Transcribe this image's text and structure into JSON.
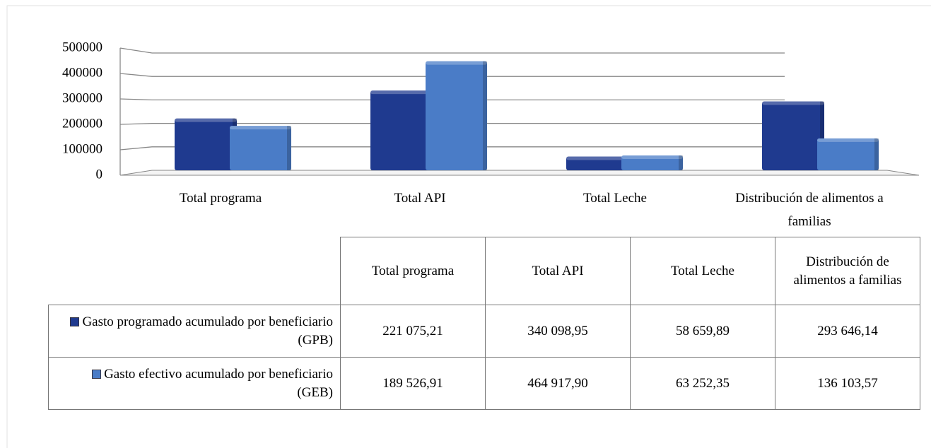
{
  "chart_data": {
    "type": "bar",
    "categories": [
      "Total programa",
      "Total API",
      "Total Leche",
      "Distribución de alimentos a familias"
    ],
    "series": [
      {
        "name": "Gasto programado acumulado por beneficiario (GPB)",
        "color": "#1f3a8f",
        "values": [
          221075.21,
          340098.95,
          58659.89,
          293646.14
        ],
        "value_labels": [
          "221 075,21",
          "340 098,95",
          "58 659,89",
          "293 646,14"
        ]
      },
      {
        "name": "Gasto efectivo acumulado por beneficiario (GEB)",
        "color": "#4a7cc7",
        "values": [
          189526.91,
          464917.9,
          63252.35,
          136103.57
        ],
        "value_labels": [
          "189 526,91",
          "464 917,90",
          "63 252,35",
          "136 103,57"
        ]
      }
    ],
    "ylim": [
      0,
      500000
    ],
    "yticks": [
      0,
      100000,
      200000,
      300000,
      400000,
      500000
    ],
    "grid": true
  }
}
